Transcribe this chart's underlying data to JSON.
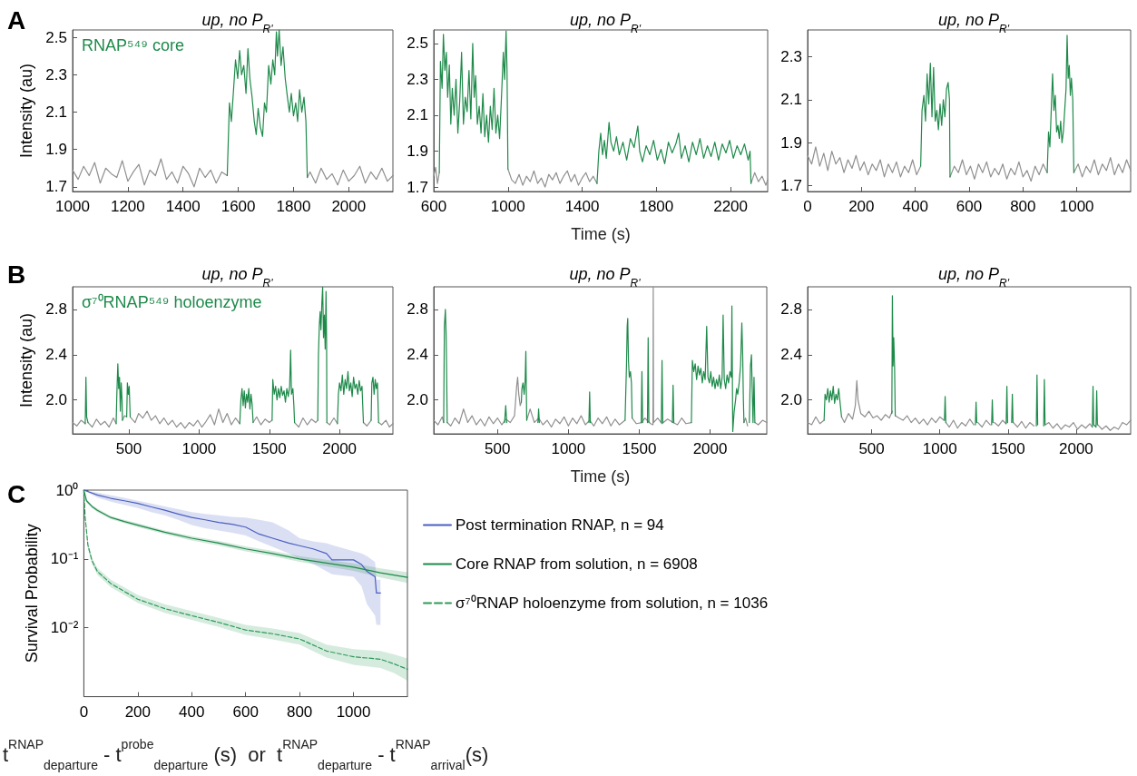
{
  "chart_data": [
    {
      "type": "line",
      "title": "up, no P$_{R'}$",
      "ylabel": "Intensity (au)",
      "annotations": [
        "A",
        "RNAP⁵⁴⁹ core"
      ],
      "xlim": [
        1000,
        2160
      ],
      "xticks": [
        1000,
        1200,
        1400,
        1600,
        1800,
        2000
      ],
      "ylim": [
        1.675,
        2.54
      ],
      "yticks": [
        1.7,
        1.9,
        2.1,
        2.3,
        2.5
      ],
      "grid": false,
      "series": [
        {
          "color": "#8f8f8f",
          "x": [
            1000,
            1020,
            1040,
            1060,
            1080,
            1100,
            1120,
            1140,
            1160,
            1180,
            1200,
            1220,
            1240,
            1260,
            1280,
            1300,
            1320,
            1340,
            1360,
            1380,
            1400,
            1420,
            1440,
            1460,
            1480,
            1500,
            1520,
            1540,
            1560,
            1700,
            1850,
            1860,
            1880,
            1900,
            1920,
            1940,
            1960,
            1980,
            2000,
            2020,
            2040,
            2060,
            2080,
            2100,
            2120,
            2140,
            2160
          ],
          "values": [
            1.79,
            1.74,
            1.81,
            1.76,
            1.83,
            1.72,
            1.8,
            1.77,
            1.75,
            1.84,
            1.73,
            1.78,
            1.82,
            1.71,
            1.79,
            1.76,
            1.85,
            1.74,
            1.78,
            1.72,
            1.81,
            1.77,
            1.7,
            1.8,
            1.75,
            1.79,
            1.72,
            1.78,
            1.76,
            null,
            1.75,
            1.78,
            1.72,
            1.8,
            1.74,
            1.77,
            1.71,
            1.79,
            1.73,
            1.76,
            1.81,
            1.72,
            1.78,
            1.74,
            1.8,
            1.73,
            1.76
          ]
        },
        {
          "color": "#1e8a4a",
          "x": [
            1560,
            1568,
            1575,
            1582,
            1590,
            1598,
            1605,
            1612,
            1620,
            1628,
            1635,
            1642,
            1650,
            1658,
            1665,
            1672,
            1680,
            1688,
            1695,
            1702,
            1710,
            1718,
            1725,
            1732,
            1738,
            1742,
            1748,
            1755,
            1762,
            1770,
            1778,
            1785,
            1792,
            1800,
            1808,
            1815,
            1822,
            1830,
            1838,
            1845,
            1850
          ],
          "values": [
            1.76,
            2.15,
            2.05,
            2.2,
            2.38,
            2.28,
            2.43,
            2.3,
            2.35,
            2.2,
            2.44,
            2.28,
            2.18,
            2.05,
            1.98,
            2.12,
            2.02,
            1.97,
            2.15,
            2.1,
            2.35,
            2.25,
            2.38,
            2.3,
            2.53,
            2.4,
            2.54,
            2.35,
            2.45,
            2.28,
            2.18,
            2.1,
            2.2,
            2.08,
            2.15,
            2.05,
            2.22,
            2.1,
            2.18,
            2.05,
            1.75
          ]
        }
      ]
    },
    {
      "type": "line",
      "title": "up, no P$_{R'}$",
      "xlabel": "Time (s)",
      "xlim": [
        600,
        2400
      ],
      "xticks": [
        600,
        1000,
        1400,
        1800,
        2200
      ],
      "ylim": [
        1.675,
        2.575
      ],
      "yticks": [
        1.7,
        1.9,
        2.1,
        2.3,
        2.5
      ],
      "grid": false,
      "series": [
        {
          "color": "#8f8f8f",
          "x": [
            600,
            610,
            620,
            630,
            800,
            1000,
            1020,
            1040,
            1060,
            1080,
            1100,
            1120,
            1140,
            1160,
            1180,
            1200,
            1220,
            1240,
            1260,
            1280,
            1300,
            1320,
            1340,
            1360,
            1380,
            1400,
            1420,
            1440,
            1460,
            1480,
            1900,
            2310,
            2330,
            2350,
            2370,
            2390,
            2400
          ],
          "values": [
            1.76,
            1.81,
            1.72,
            1.78,
            null,
            1.8,
            1.74,
            1.72,
            1.77,
            1.71,
            1.76,
            1.73,
            1.79,
            1.72,
            1.75,
            1.7,
            1.77,
            1.74,
            1.78,
            1.72,
            1.76,
            1.79,
            1.73,
            1.77,
            1.71,
            1.75,
            1.78,
            1.73,
            1.76,
            1.72,
            null,
            1.72,
            1.78,
            1.73,
            1.76,
            1.71,
            1.74
          ]
        },
        {
          "color": "#1e8a4a",
          "x": [
            630,
            636,
            645,
            652,
            660,
            668,
            675,
            684,
            692,
            700,
            710,
            720,
            730,
            740,
            750,
            760,
            770,
            780,
            790,
            800,
            810,
            818,
            826,
            835,
            845,
            855,
            865,
            875,
            885,
            895,
            905,
            915,
            925,
            935,
            945,
            955,
            965,
            975,
            982,
            990,
            995,
            1000,
            1200,
            1480,
            1490,
            1500,
            1510,
            1520,
            1530,
            1545,
            1555,
            1570,
            1585,
            1600,
            1620,
            1640,
            1660,
            1680,
            1700,
            1710,
            1725,
            1745,
            1765,
            1785,
            1805,
            1825,
            1845,
            1865,
            1885,
            1905,
            1920,
            1935,
            1955,
            1975,
            1995,
            2015,
            2035,
            2055,
            2075,
            2095,
            2115,
            2135,
            2155,
            2175,
            2195,
            2215,
            2235,
            2255,
            2275,
            2295,
            2305,
            2310
          ],
          "values": [
            1.78,
            2.4,
            2.25,
            2.55,
            2.35,
            2.45,
            2.2,
            2.38,
            2.05,
            2.25,
            2.1,
            2.3,
            2.0,
            2.18,
            2.45,
            2.05,
            2.2,
            2.12,
            2.35,
            2.08,
            2.5,
            2.2,
            2.32,
            2.05,
            2.15,
            2.0,
            2.22,
            1.98,
            2.1,
            1.95,
            2.15,
            2.02,
            2.25,
            2.0,
            2.1,
            1.97,
            2.2,
            2.45,
            2.3,
            2.57,
            2.35,
            1.8,
            null,
            1.72,
            1.9,
            2.0,
            1.88,
            1.96,
            1.86,
            2.06,
            1.95,
            1.9,
            1.98,
            1.88,
            1.95,
            1.85,
            1.97,
            1.92,
            2.04,
            1.9,
            1.84,
            1.93,
            1.88,
            1.96,
            1.85,
            1.91,
            1.83,
            1.95,
            1.89,
            1.94,
            2.0,
            1.86,
            1.93,
            1.84,
            1.95,
            1.88,
            1.97,
            1.86,
            1.93,
            1.87,
            1.95,
            1.85,
            1.94,
            1.89,
            1.96,
            1.86,
            1.93,
            1.88,
            1.94,
            1.85,
            1.9,
            1.72
          ]
        }
      ]
    },
    {
      "type": "line",
      "title": "up, no P$_{R'}$",
      "xlim": [
        0,
        1200
      ],
      "xticks": [
        0,
        200,
        400,
        600,
        800,
        1000
      ],
      "ylim": [
        1.672,
        2.425
      ],
      "yticks": [
        1.7,
        1.9,
        2.1,
        2.3
      ],
      "grid": false,
      "series": [
        {
          "color": "#8f8f8f",
          "x": [
            0,
            15,
            30,
            45,
            60,
            75,
            90,
            105,
            120,
            135,
            150,
            165,
            180,
            195,
            210,
            225,
            240,
            255,
            270,
            285,
            300,
            315,
            330,
            345,
            360,
            375,
            390,
            405,
            420,
            470,
            529,
            545,
            560,
            575,
            590,
            605,
            620,
            635,
            650,
            665,
            680,
            695,
            710,
            725,
            740,
            755,
            770,
            785,
            800,
            815,
            830,
            845,
            860,
            875,
            890,
            940,
            989,
            1005,
            1020,
            1035,
            1050,
            1065,
            1080,
            1095,
            1110,
            1125,
            1140,
            1155,
            1170,
            1185,
            1200
          ],
          "values": [
            1.84,
            1.8,
            1.88,
            1.79,
            1.85,
            1.77,
            1.86,
            1.8,
            1.83,
            1.76,
            1.82,
            1.78,
            1.84,
            1.77,
            1.81,
            1.75,
            1.8,
            1.77,
            1.82,
            1.74,
            1.8,
            1.76,
            1.81,
            1.74,
            1.79,
            1.76,
            1.82,
            1.75,
            1.79,
            null,
            1.74,
            1.79,
            1.76,
            1.82,
            1.75,
            1.79,
            1.73,
            1.8,
            1.76,
            1.81,
            1.74,
            1.78,
            1.75,
            1.8,
            1.73,
            1.78,
            1.75,
            1.81,
            1.74,
            1.77,
            1.72,
            1.79,
            1.75,
            1.8,
            1.76,
            null,
            1.76,
            1.8,
            1.74,
            1.79,
            1.76,
            1.82,
            1.75,
            1.8,
            1.77,
            1.83,
            1.75,
            1.8,
            1.76,
            1.82,
            1.77
          ]
        },
        {
          "color": "#1e8a4a",
          "x": [
            420,
            425,
            432,
            438,
            444,
            450,
            456,
            462,
            468,
            474,
            480,
            486,
            492,
            498,
            504,
            510,
            516,
            522,
            527,
            529,
            700,
            890,
            895,
            900,
            905,
            910,
            915,
            920,
            925,
            930,
            935,
            940,
            945,
            950,
            955,
            960,
            964,
            968,
            972,
            976,
            980,
            985,
            989
          ],
          "values": [
            1.79,
            2.05,
            2.12,
            2.0,
            2.22,
            2.08,
            2.27,
            2.02,
            2.25,
            2.0,
            2.05,
            1.96,
            2.08,
            1.98,
            2.1,
            2.02,
            2.15,
            2.18,
            2.1,
            1.74,
            null,
            1.76,
            1.95,
            1.88,
            2.05,
            2.22,
            2.05,
            2.12,
            1.95,
            1.98,
            1.92,
            2.0,
            1.9,
            1.95,
            2.05,
            2.15,
            2.4,
            2.2,
            2.26,
            2.12,
            2.2,
            2.1,
            1.76
          ]
        }
      ]
    },
    {
      "type": "line",
      "title": "up, no P$_{R'}$",
      "ylabel": "Intensity (au)",
      "annotations": [
        "B",
        "σ⁷⁰RNAP⁵⁴⁹ holoenzyme"
      ],
      "xlim": [
        100,
        2380
      ],
      "xticks": [
        500,
        1000,
        1500,
        2000
      ],
      "ylim": [
        1.7,
        3.0
      ],
      "yticks": [
        {
          "value": 2,
          "label": "2.0"
        },
        2.4,
        2.8
      ],
      "grid": false,
      "series": [
        {
          "color": "#8f8f8f",
          "x": [
            100,
            130,
            160,
            190,
            200,
            210,
            240,
            270,
            300,
            330,
            360,
            390,
            410,
            430,
            455,
            470,
            485,
            497,
            510,
            545,
            570,
            600,
            630,
            660,
            690,
            720,
            750,
            780,
            810,
            840,
            870,
            900,
            930,
            960,
            990,
            1020,
            1050,
            1080,
            1110,
            1140,
            1170,
            1200,
            1230,
            1260,
            1290,
            1340,
            1385,
            1410,
            1440,
            1470,
            1500,
            1520,
            1600,
            1680,
            1710,
            1740,
            1770,
            1800,
            1830,
            1845,
            1880,
            1910,
            1930,
            1960,
            1985,
            2100,
            2170,
            2195,
            2225,
            2250,
            2278,
            2300,
            2330,
            2355,
            2380
          ],
          "values": [
            1.8,
            1.77,
            1.82,
            1.79,
            null,
            1.8,
            1.76,
            1.83,
            1.78,
            1.81,
            1.76,
            1.84,
            1.79,
            null,
            1.82,
            1.86,
            1.85,
            null,
            1.85,
            1.8,
            1.88,
            1.84,
            1.9,
            1.82,
            1.86,
            1.79,
            1.84,
            1.78,
            1.82,
            1.76,
            1.8,
            1.75,
            1.8,
            1.77,
            1.82,
            1.76,
            1.81,
            1.87,
            1.78,
            1.92,
            1.8,
            1.88,
            1.78,
            1.84,
            1.79,
            null,
            1.8,
            1.85,
            1.78,
            1.83,
            1.8,
            1.82,
            null,
            1.8,
            1.76,
            1.84,
            1.78,
            1.83,
            1.8,
            1.82,
            null,
            1.8,
            1.78,
            1.84,
            1.79,
            null,
            1.8,
            1.77,
            1.82,
            null,
            1.8,
            1.78,
            1.82,
            1.76,
            1.79
          ]
        },
        {
          "color": "#1e8a4a",
          "x": [
            190,
            195,
            200,
            210,
            300,
            410,
            415,
            422,
            428,
            434,
            440,
            446,
            452,
            455,
            470,
            485,
            490,
            497,
            503,
            510,
            900,
            1290,
            1298,
            1306,
            1314,
            1322,
            1330,
            1338,
            1346,
            1354,
            1362,
            1370,
            1378,
            1385,
            1450,
            1520,
            1525,
            1535,
            1545,
            1555,
            1565,
            1575,
            1585,
            1595,
            1605,
            1615,
            1625,
            1635,
            1645,
            1652,
            1658,
            1668,
            1675,
            1680,
            1760,
            1845,
            1850,
            1856,
            1862,
            1868,
            1874,
            1880,
            1886,
            1892,
            1898,
            1904,
            1908,
            1910,
            1950,
            1985,
            1992,
            2000,
            2010,
            2020,
            2030,
            2040,
            2050,
            2060,
            2070,
            2080,
            2090,
            2100,
            2110,
            2120,
            2130,
            2140,
            2150,
            2160,
            2170,
            2200,
            2225,
            2230,
            2238,
            2246,
            2254,
            2262,
            2270,
            2278
          ],
          "values": [
            1.79,
            2.2,
            1.85,
            1.8,
            null,
            1.79,
            2.05,
            2.32,
            2.1,
            2.2,
            1.9,
            2.15,
            2.0,
            1.82,
            null,
            1.85,
            2.15,
            2.05,
            2.12,
            1.85,
            null,
            1.79,
            2.0,
            2.1,
            1.95,
            2.08,
            1.93,
            2.05,
            1.98,
            2.1,
            1.92,
            2.05,
            1.96,
            1.8,
            null,
            1.82,
            2.18,
            2.05,
            2.12,
            2.0,
            2.1,
            2.02,
            2.12,
            2.04,
            2.08,
            1.98,
            2.1,
            2.03,
            2.12,
            2.44,
            2.05,
            2.1,
            1.95,
            1.8,
            null,
            1.82,
            2.4,
            2.65,
            2.78,
            2.62,
            2.85,
            3.0,
            2.55,
            2.75,
            2.45,
            2.96,
            2.5,
            1.8,
            null,
            1.79,
            2.05,
            2.15,
            2.08,
            2.22,
            2.05,
            2.18,
            2.1,
            2.25,
            2.08,
            2.15,
            2.03,
            2.2,
            2.1,
            2.14,
            2.05,
            2.17,
            2.08,
            2.12,
            1.8,
            null,
            1.82,
            2.15,
            2.2,
            2.05,
            2.18,
            2.1,
            2.15,
            1.8
          ]
        }
      ]
    },
    {
      "type": "line",
      "title": "up, no P$_{R'}$",
      "xlabel": "Time (s)",
      "xlim": [
        50,
        2400
      ],
      "xticks": [
        500,
        1000,
        1500,
        2000
      ],
      "ylim": [
        1.7,
        3.0
      ],
      "yticks": [
        {
          "value": 2,
          "label": "2.0"
        },
        2.4,
        2.8
      ],
      "grid": false,
      "series": [
        {
          "color": "#8f8f8f",
          "x": [
            50,
            80,
            110,
            120,
            132,
            145,
            170,
            200,
            230,
            260,
            290,
            320,
            350,
            380,
            410,
            440,
            470,
            500,
            530,
            558,
            590,
            620,
            635,
            642,
            650,
            660,
            668,
            690,
            706,
            730,
            760,
            790,
            820,
            850,
            880,
            910,
            940,
            970,
            1000,
            1030,
            1060,
            1090,
            1120,
            1150,
            1180,
            1210,
            1240,
            1270,
            1300,
            1330,
            1360,
            1400,
            1420,
            1450,
            1480,
            1519,
            1540,
            1563,
            1580,
            1597,
            1599,
            1601,
            1630,
            1661,
            1700,
            1739,
            1770,
            1800,
            1830,
            1868,
            2000,
            2239,
            2250,
            2265,
            2290,
            2316,
            2340,
            2370,
            2400
          ],
          "values": [
            1.82,
            1.78,
            1.85,
            1.8,
            null,
            1.8,
            1.77,
            1.84,
            1.79,
            1.92,
            1.8,
            1.86,
            1.78,
            1.83,
            1.77,
            1.85,
            1.79,
            1.84,
            1.78,
            1.83,
            1.8,
            1.86,
            2.12,
            2.2,
            2.05,
            1.95,
            1.98,
            null,
            1.82,
            1.92,
            1.8,
            1.84,
            1.78,
            1.82,
            1.76,
            1.83,
            1.79,
            1.85,
            1.77,
            1.84,
            1.79,
            1.86,
            1.78,
            1.82,
            1.77,
            1.84,
            1.79,
            1.85,
            1.77,
            1.83,
            1.78,
            1.82,
            null,
            1.84,
            1.79,
            1.8,
            1.84,
            1.81,
            1.79,
            1.78,
            3.0,
            1.8,
            1.84,
            1.79,
            1.83,
            1.8,
            1.78,
            1.84,
            1.79,
            1.8,
            null,
            1.8,
            1.84,
            1.77,
            null,
            1.8,
            1.78,
            1.82,
            1.8
          ]
        },
        {
          "color": "#1e8a4a",
          "x": [
            120,
            125,
            132,
            138,
            145,
            300,
            550,
            558,
            565,
            600,
            668,
            672,
            680,
            688,
            695,
            700,
            706,
            750,
            785,
            790,
            795,
            900,
            1145,
            1150,
            1155,
            1300,
            1400,
            1410,
            1415,
            1419,
            1424,
            1430,
            1438,
            1445,
            1450,
            1480,
            1514,
            1519,
            1524,
            1540,
            1558,
            1563,
            1568,
            1620,
            1656,
            1661,
            1666,
            1700,
            1734,
            1739,
            1744,
            1800,
            1868,
            1875,
            1885,
            1895,
            1905,
            1915,
            1925,
            1935,
            1945,
            1955,
            1965,
            1976,
            1985,
            1995,
            2005,
            2015,
            2025,
            2035,
            2045,
            2055,
            2065,
            2075,
            2085,
            2092,
            2100,
            2110,
            2120,
            2130,
            2140,
            2150,
            2154,
            2160,
            2170,
            2180,
            2187,
            2195,
            2205,
            2215,
            2224,
            2230,
            2235,
            2239,
            2260,
            2277,
            2285,
            2292,
            2298,
            2303,
            2310,
            2316
          ],
          "values": [
            1.8,
            2.65,
            2.8,
            2.55,
            1.8,
            null,
            1.8,
            1.95,
            1.8,
            null,
            1.98,
            2.1,
            2.15,
            2.05,
            2.17,
            2.43,
            1.82,
            null,
            1.8,
            1.92,
            1.8,
            null,
            1.8,
            2.07,
            1.8,
            null,
            1.82,
            2.3,
            2.65,
            2.72,
            2.35,
            2.2,
            2.25,
            2.15,
            1.84,
            null,
            1.8,
            2.25,
            1.8,
            null,
            1.8,
            2.55,
            1.8,
            null,
            1.8,
            2.35,
            1.8,
            null,
            1.8,
            2.13,
            1.8,
            null,
            1.8,
            2.35,
            2.25,
            2.32,
            2.18,
            2.3,
            2.22,
            2.28,
            2.15,
            2.25,
            2.18,
            2.65,
            2.2,
            2.15,
            2.25,
            2.12,
            2.2,
            2.1,
            2.18,
            2.12,
            2.22,
            2.1,
            2.2,
            2.75,
            2.18,
            2.1,
            2.22,
            2.15,
            2.25,
            2.2,
            2.83,
            1.72,
            1.9,
            2.0,
            2.1,
            2.05,
            2.15,
            2.3,
            2.68,
            2.4,
            2.0,
            1.8,
            null,
            1.8,
            2.3,
            2.4,
            2.05,
            1.8,
            2.2,
            1.8
          ]
        }
      ]
    },
    {
      "type": "line",
      "title": "up, no P$_{R'}$",
      "xlim": [
        30,
        2400
      ],
      "xticks": [
        500,
        1000,
        1500,
        2000
      ],
      "ylim": [
        1.7,
        3.0
      ],
      "yticks": [
        {
          "value": 2,
          "label": "2.0"
        },
        2.4,
        2.8
      ],
      "grid": false,
      "series": [
        {
          "color": "#8f8f8f",
          "x": [
            30,
            60,
            90,
            120,
            151,
            200,
            279,
            300,
            330,
            360,
            380,
            391,
            400,
            420,
            450,
            480,
            510,
            540,
            570,
            600,
            630,
            652,
            660,
            673,
            700,
            730,
            760,
            790,
            820,
            850,
            880,
            910,
            940,
            970,
            1000,
            1030,
            1039,
            1045,
            1070,
            1100,
            1130,
            1160,
            1190,
            1220,
            1250,
            1266,
            1280,
            1310,
            1340,
            1370,
            1385,
            1400,
            1430,
            1460,
            1485,
            1510,
            1540,
            1570,
            1600,
            1630,
            1660,
            1690,
            1740,
            1775,
            1800,
            1830,
            1860,
            1890,
            1920,
            1950,
            1980,
            2010,
            2040,
            2070,
            2100,
            2118,
            2140,
            2160,
            2190,
            2220,
            2250,
            2280,
            2310,
            2340,
            2370,
            2400
          ],
          "values": [
            1.8,
            1.78,
            1.85,
            1.79,
            1.82,
            null,
            1.85,
            1.8,
            1.88,
            1.83,
            1.95,
            2.17,
            2.0,
            1.88,
            1.85,
            1.9,
            1.84,
            1.86,
            1.82,
            1.87,
            1.84,
            1.9,
            null,
            1.86,
            1.84,
            1.82,
            1.86,
            1.8,
            1.84,
            1.79,
            1.83,
            1.78,
            1.84,
            1.8,
            1.85,
            1.82,
            null,
            1.8,
            1.76,
            1.82,
            1.75,
            1.8,
            1.77,
            1.83,
            1.78,
            null,
            1.8,
            1.76,
            1.82,
            1.78,
            null,
            1.8,
            1.77,
            1.82,
            1.79,
            null,
            1.8,
            1.76,
            1.81,
            1.75,
            1.8,
            1.77,
            null,
            1.78,
            1.8,
            1.75,
            1.79,
            1.74,
            1.78,
            1.76,
            1.8,
            1.74,
            1.78,
            1.75,
            1.79,
            1.76,
            null,
            1.78,
            1.74,
            1.77,
            1.73,
            1.76,
            1.74,
            1.8,
            1.78,
            1.82
          ]
        },
        {
          "color": "#1e8a4a",
          "x": [
            151,
            158,
            168,
            178,
            188,
            198,
            208,
            218,
            228,
            238,
            248,
            258,
            268,
            279,
            400,
            648,
            652,
            657,
            662,
            668,
            673,
            800,
            1034,
            1039,
            1044,
            1100,
            1261,
            1266,
            1271,
            1300,
            1380,
            1385,
            1390,
            1450,
            1487,
            1492,
            1497,
            1510,
            1527,
            1532,
            1537,
            1600,
            1708,
            1713,
            1718,
            1740,
            1762,
            1767,
            1772,
            2000,
            2119,
            2124,
            2129,
            2146,
            2151,
            2156
          ],
          "values": [
            1.82,
            2.05,
            2.0,
            2.1,
            1.98,
            2.08,
            2.0,
            2.12,
            1.97,
            2.05,
            2.0,
            2.1,
            1.98,
            1.85,
            null,
            1.88,
            2.92,
            2.3,
            2.55,
            2.3,
            1.86,
            null,
            1.82,
            2.03,
            1.8,
            null,
            1.78,
            1.98,
            1.8,
            null,
            1.78,
            2.0,
            1.8,
            null,
            1.79,
            2.12,
            1.8,
            null,
            1.8,
            2.05,
            1.8,
            null,
            1.77,
            2.22,
            1.78,
            null,
            1.77,
            2.18,
            1.78,
            null,
            1.76,
            2.12,
            1.78,
            1.76,
            2.08,
            1.78
          ]
        }
      ]
    },
    {
      "type": "line",
      "xlabel": "t$^{RNAP}$$_{departure}$ - t$^{probe}$$_{departure}$ (s)  or  t$^{RNAP}$$_{departure}$ - t$^{RNAP}$$_{arrival}$(s)",
      "ylabel": "Survival Probability",
      "annotations": [
        "C"
      ],
      "log": "y",
      "xlim": [
        0,
        1200
      ],
      "xticks": [
        0,
        200,
        400,
        600,
        800,
        1000
      ],
      "ylim": [
        0.001,
        1
      ],
      "yticks": [
        {
          "value": 1,
          "label": "10⁰"
        },
        {
          "value": 0.1,
          "label": "10⁻¹"
        },
        {
          "value": 0.01,
          "label": "10⁻²"
        }
      ],
      "grid": false,
      "legend": "right",
      "series": [
        {
          "name": "Post termination RNAP, n = 94",
          "color": "#4a5fc1",
          "x": [
            0,
            50,
            100,
            150,
            200,
            250,
            300,
            350,
            400,
            450,
            500,
            550,
            600,
            650,
            700,
            760,
            800,
            850,
            900,
            920,
            1000,
            1030,
            1050,
            1080,
            1085,
            1100
          ],
          "values": [
            1,
            0.85,
            0.76,
            0.7,
            0.64,
            0.57,
            0.51,
            0.45,
            0.4,
            0.37,
            0.34,
            0.32,
            0.29,
            0.23,
            0.2,
            0.17,
            0.156,
            0.14,
            0.12,
            0.097,
            0.097,
            0.083,
            0.066,
            0.055,
            0.032,
            0.032
          ],
          "upper": [
            1,
            0.92,
            0.84,
            0.77,
            0.7,
            0.64,
            0.58,
            0.53,
            0.48,
            0.45,
            0.43,
            0.41,
            0.4,
            0.37,
            0.34,
            0.26,
            0.2,
            0.18,
            0.17,
            0.16,
            0.13,
            0.12,
            0.11,
            0.09,
            0.05,
            0.05
          ],
          "lower": [
            1,
            0.78,
            0.68,
            0.61,
            0.55,
            0.48,
            0.43,
            0.37,
            0.31,
            0.28,
            0.26,
            0.24,
            0.22,
            0.18,
            0.15,
            0.12,
            0.1,
            0.085,
            0.066,
            0.06,
            0.055,
            0.04,
            0.022,
            0.015,
            0.011,
            0.011
          ]
        },
        {
          "name": "Core RNAP from solution, n = 6908",
          "color": "#1e8a4a",
          "x": [
            0,
            10,
            30,
            50,
            100,
            150,
            200,
            300,
            400,
            500,
            600,
            700,
            800,
            900,
            1000,
            1100,
            1200
          ],
          "values": [
            1,
            0.7,
            0.58,
            0.51,
            0.4,
            0.35,
            0.31,
            0.245,
            0.2,
            0.17,
            0.14,
            0.12,
            0.1,
            0.087,
            0.076,
            0.063,
            0.054
          ],
          "upper": [
            1,
            0.74,
            0.61,
            0.54,
            0.42,
            0.37,
            0.33,
            0.26,
            0.215,
            0.183,
            0.152,
            0.131,
            0.11,
            0.097,
            0.086,
            0.073,
            0.064
          ],
          "lower": [
            1,
            0.66,
            0.55,
            0.48,
            0.38,
            0.33,
            0.29,
            0.23,
            0.186,
            0.157,
            0.129,
            0.11,
            0.091,
            0.078,
            0.067,
            0.054,
            0.045
          ]
        },
        {
          "name": "σ⁷⁰RNAP holoenzyme from solution, n = 1036",
          "color": "#2e9a58",
          "line_style": "dashed",
          "x": [
            0,
            5,
            15,
            30,
            50,
            100,
            200,
            300,
            400,
            500,
            600,
            700,
            800,
            900,
            1000,
            1100,
            1150,
            1200
          ],
          "values": [
            1,
            0.4,
            0.16,
            0.095,
            0.066,
            0.044,
            0.026,
            0.019,
            0.015,
            0.012,
            0.0093,
            0.0082,
            0.0069,
            0.0046,
            0.0038,
            0.0035,
            0.003,
            0.0025
          ],
          "upper": [
            1,
            0.45,
            0.18,
            0.105,
            0.074,
            0.05,
            0.03,
            0.022,
            0.0175,
            0.014,
            0.011,
            0.0098,
            0.0084,
            0.0057,
            0.0049,
            0.0046,
            0.0041,
            0.0036
          ],
          "lower": [
            1,
            0.35,
            0.14,
            0.085,
            0.059,
            0.039,
            0.023,
            0.0165,
            0.013,
            0.0103,
            0.0079,
            0.0068,
            0.0057,
            0.0037,
            0.0029,
            0.0026,
            0.0022,
            0.0017
          ]
        }
      ]
    }
  ]
}
